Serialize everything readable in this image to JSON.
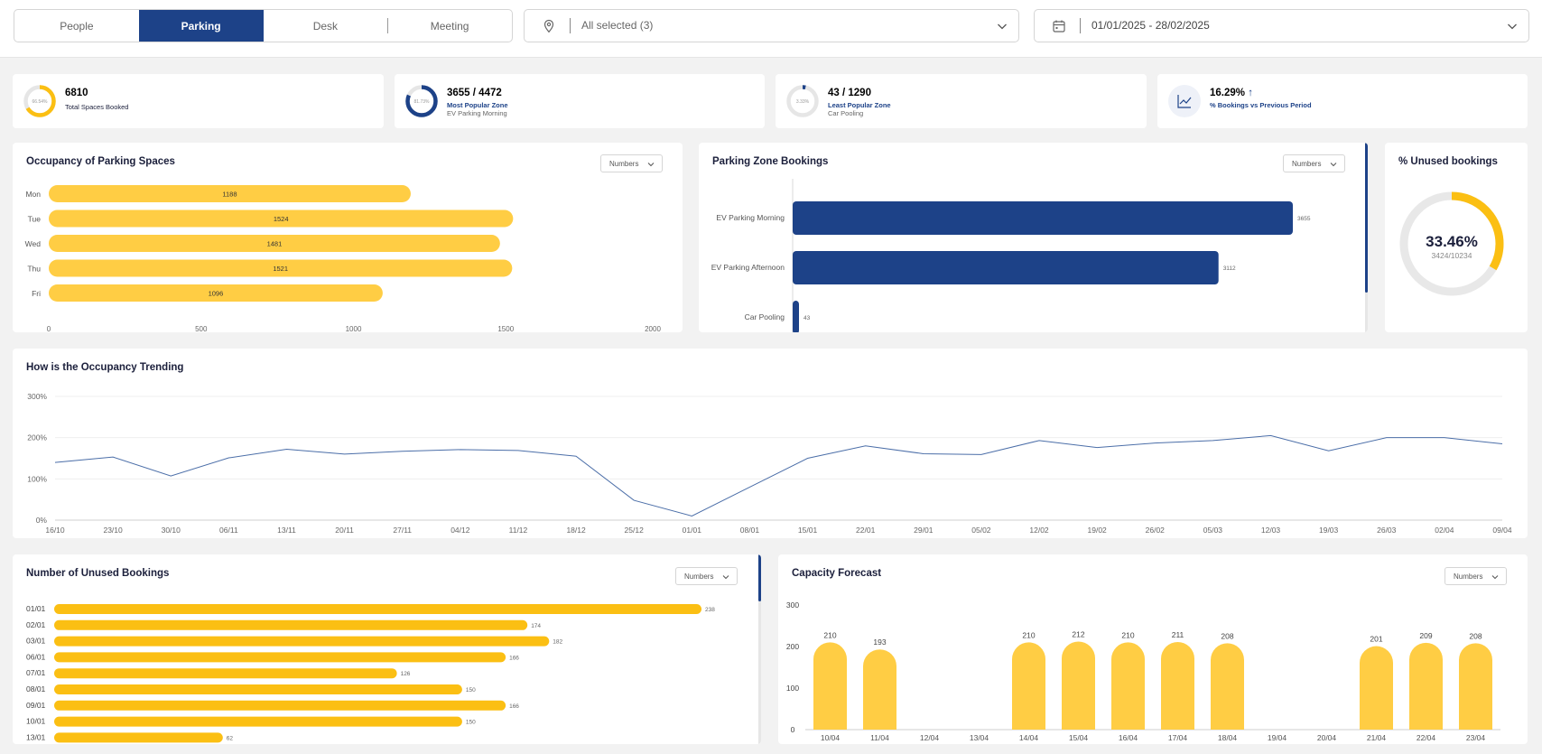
{
  "colors": {
    "primary": "#1d4288",
    "accent": "#fbbf13",
    "bar_yellow": "#ffcd44",
    "bar_blue": "#1d4288",
    "track": "#e6e6e6"
  },
  "tabs": [
    "People",
    "Parking",
    "Desk",
    "Meeting"
  ],
  "active_tab": 1,
  "location": {
    "icon": "map-pin-icon",
    "text": "All selected (3)"
  },
  "date_range": {
    "icon": "calendar-icon",
    "text": "01/01/2025 - 28/02/2025"
  },
  "kpis": [
    {
      "donut_label": "66.54%",
      "percent": 66.54,
      "color": "#fbbf13",
      "value": "6810",
      "label": "Total Spaces Booked",
      "sub": ""
    },
    {
      "donut_label": "81.73%",
      "percent": 81.73,
      "color": "#1d4288",
      "value": "3655 / 4472",
      "label": "Most Popular Zone",
      "sub": "EV Parking Morning"
    },
    {
      "donut_label": "3.33%",
      "percent": 3.33,
      "color": "#1d4288",
      "value": "43 / 1290",
      "label": "Least Popular Zone",
      "sub": "Car Pooling"
    },
    {
      "icon": "trend-chart-icon",
      "value": "16.29%",
      "arrow": "↑",
      "label": "% Bookings vs Previous Period",
      "sub": ""
    }
  ],
  "occupancy": {
    "title": "Occupancy of Parking Spaces",
    "dropdown": "Numbers",
    "chart_data": {
      "type": "bar",
      "orientation": "horizontal",
      "categories": [
        "Mon",
        "Tue",
        "Wed",
        "Thu",
        "Fri"
      ],
      "values": [
        1188,
        1524,
        1481,
        1521,
        1096
      ],
      "xlim": [
        0,
        2000
      ],
      "xticks": [
        "0",
        "500",
        "1000",
        "1500",
        "2000"
      ]
    }
  },
  "zones": {
    "title": "Parking Zone Bookings",
    "dropdown": "Numbers",
    "chart_data": {
      "type": "bar",
      "orientation": "horizontal",
      "categories": [
        "EV Parking Morning",
        "EV Parking Afternoon",
        "Car Pooling"
      ],
      "values": [
        3655,
        3112,
        43
      ]
    }
  },
  "unused_pct": {
    "title": "% Unused bookings",
    "value": "33.46%",
    "sub": "3424/10234",
    "percent": 33.46
  },
  "trend": {
    "title": "How is the Occupancy Trending",
    "chart_data": {
      "type": "line",
      "x": [
        "16/10",
        "23/10",
        "30/10",
        "06/11",
        "13/11",
        "20/11",
        "27/11",
        "04/12",
        "11/12",
        "18/12",
        "25/12",
        "01/01",
        "08/01",
        "15/01",
        "22/01",
        "29/01",
        "05/02",
        "12/02",
        "19/02",
        "26/02",
        "05/03",
        "12/03",
        "19/03",
        "26/03",
        "02/04",
        "09/04"
      ],
      "values": [
        140,
        153,
        107,
        151,
        172,
        160,
        167,
        171,
        169,
        155,
        48,
        10,
        80,
        150,
        180,
        161,
        159,
        193,
        176,
        187,
        193,
        205,
        168,
        200,
        200,
        185
      ],
      "ylim": [
        0,
        300
      ],
      "yticks": [
        "0%",
        "100%",
        "200%",
        "300%"
      ]
    }
  },
  "unused_count": {
    "title": "Number of Unused Bookings",
    "dropdown": "Numbers",
    "chart_data": {
      "type": "bar",
      "orientation": "horizontal",
      "categories": [
        "01/01",
        "02/01",
        "03/01",
        "06/01",
        "07/01",
        "08/01",
        "09/01",
        "10/01",
        "13/01"
      ],
      "values": [
        238,
        174,
        182,
        166,
        126,
        150,
        166,
        150,
        62
      ],
      "xlim": [
        0,
        270
      ]
    }
  },
  "forecast": {
    "title": "Capacity Forecast",
    "dropdown": "Numbers",
    "chart_data": {
      "type": "bar",
      "categories": [
        "10/04",
        "11/04",
        "12/04",
        "13/04",
        "14/04",
        "15/04",
        "16/04",
        "17/04",
        "18/04",
        "19/04",
        "20/04",
        "21/04",
        "22/04",
        "23/04"
      ],
      "values": [
        210,
        193,
        null,
        null,
        210,
        212,
        210,
        211,
        208,
        null,
        null,
        201,
        209,
        208
      ],
      "ylim": [
        0,
        300
      ],
      "yticks": [
        "0",
        "100",
        "200",
        "300"
      ]
    }
  }
}
